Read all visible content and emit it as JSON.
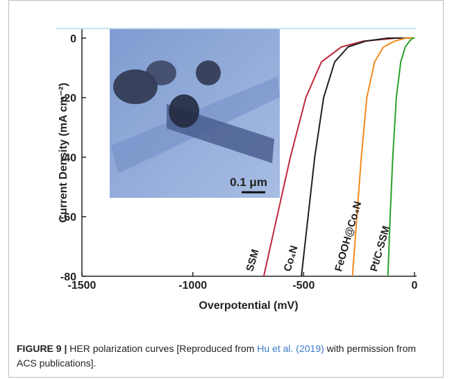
{
  "chart_data": {
    "type": "line",
    "xlabel": "Overpotential (mV)",
    "ylabel": "Current Density (mA cm⁻²)",
    "xlim": [
      -1500,
      0
    ],
    "xticks": [
      -1500,
      -1000,
      -500,
      0
    ],
    "ylim": [
      -80,
      3
    ],
    "yticks": [
      0,
      -20,
      -40,
      -60,
      -80
    ],
    "series": [
      {
        "name": "SSM",
        "color": "#c0283a",
        "x": [
          -680,
          -620,
          -560,
          -490,
          -420,
          -330,
          -230,
          -80,
          0
        ],
        "values": [
          -80,
          -60,
          -40,
          -20,
          -8,
          -3,
          -1,
          0,
          0
        ]
      },
      {
        "name": "Co₄N",
        "color": "#1e1e1e",
        "x": [
          -510,
          -480,
          -450,
          -410,
          -360,
          -300,
          -220,
          -120,
          0
        ],
        "values": [
          -80,
          -60,
          -40,
          -20,
          -8,
          -3,
          -1,
          0,
          0
        ]
      },
      {
        "name": "FeOOH@Co₄N",
        "color": "#f28a1e",
        "x": [
          -280,
          -260,
          -240,
          -215,
          -180,
          -140,
          -90,
          -40,
          0
        ],
        "values": [
          -80,
          -60,
          -40,
          -20,
          -8,
          -3,
          -1,
          0,
          0
        ]
      },
      {
        "name": "Pt/C-SSM",
        "color": "#2aa02a",
        "x": [
          -120,
          -110,
          -98,
          -82,
          -62,
          -42,
          -22,
          -8,
          0
        ],
        "values": [
          -80,
          -60,
          -40,
          -20,
          -8,
          -3,
          -1,
          0,
          0
        ]
      }
    ],
    "inset": {
      "scale_label": "0.1 μm"
    }
  },
  "caption": {
    "label": "FIGURE 9 |",
    "text_before": "HER polarization curves [Reproduced from ",
    "link": "Hu et al. (2019)",
    "text_after": " with permission from ACS publications]."
  }
}
